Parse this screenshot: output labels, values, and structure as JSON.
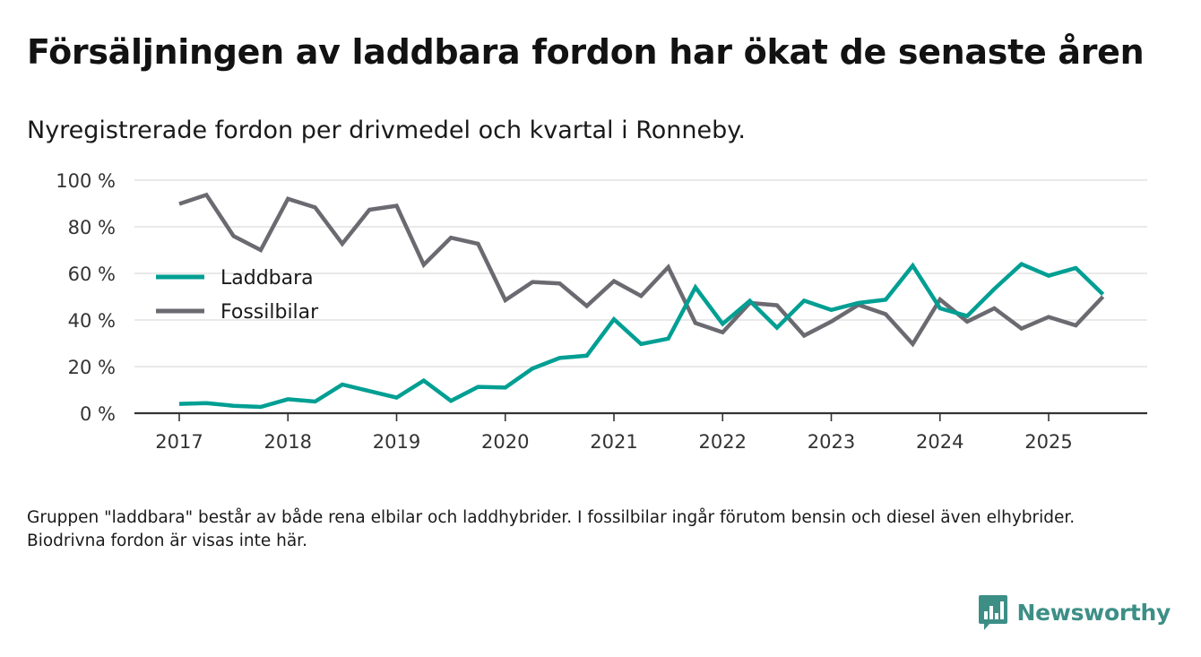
{
  "header": {
    "title": "Försäljningen av laddbara fordon har ökat de senaste åren",
    "subtitle": "Nyregistrerade fordon per drivmedel och kvartal i Ronneby."
  },
  "footer": {
    "note": "Gruppen \"laddbara\" består av både rena elbilar och laddhybrider. I fossilbilar ingår förutom bensin och diesel även elhybrider. Biodrivna fordon är visas inte här.",
    "brand": "Newsworthy"
  },
  "colors": {
    "laddbara": "#009f93",
    "fossilbilar": "#6b6a71",
    "grid": "#dcdcdc",
    "axis": "#333333",
    "brand": "#3d8f86"
  },
  "chart_data": {
    "type": "line",
    "title": "Försäljningen av laddbara fordon har ökat de senaste åren",
    "xlabel": "",
    "ylabel": "",
    "ylim": [
      0,
      100
    ],
    "xlim": [
      2017,
      2025.75
    ],
    "y_ticks": [
      0,
      20,
      40,
      60,
      80,
      100
    ],
    "y_tick_labels": [
      "0 %",
      "20 %",
      "40 %",
      "60 %",
      "80 %",
      "100 %"
    ],
    "x_ticks": [
      2017,
      2018,
      2019,
      2020,
      2021,
      2022,
      2023,
      2024,
      2025
    ],
    "x_tick_labels": [
      "2017",
      "2018",
      "2019",
      "2020",
      "2021",
      "2022",
      "2023",
      "2024",
      "2025"
    ],
    "legend_position": "left-middle",
    "x": [
      2017,
      2017.25,
      2017.5,
      2017.75,
      2018,
      2018.25,
      2018.5,
      2018.75,
      2019,
      2019.25,
      2019.5,
      2019.75,
      2020,
      2020.25,
      2020.5,
      2020.75,
      2021,
      2021.25,
      2021.5,
      2021.75,
      2022,
      2022.25,
      2022.5,
      2022.75,
      2023,
      2023.25,
      2023.5,
      2023.75,
      2024,
      2024.25,
      2024.5,
      2024.75,
      2025,
      2025.25,
      2025.5
    ],
    "series": [
      {
        "name": "Laddbara",
        "key": "laddbara",
        "values": [
          4,
          4.3,
          3.2,
          2.7,
          6,
          5,
          12.3,
          9.5,
          6.7,
          14,
          5.3,
          11.3,
          11,
          19.2,
          23.7,
          24.7,
          40.3,
          29.7,
          32,
          54,
          38.3,
          48.2,
          36.7,
          48.3,
          44.3,
          47.3,
          48.7,
          63.3,
          45,
          41.7,
          53.3,
          64,
          59,
          62.3,
          51
        ]
      },
      {
        "name": "Fossilbilar",
        "key": "fossilbilar",
        "values": [
          89.8,
          93.7,
          76,
          70,
          92,
          88.3,
          72.7,
          87.3,
          89,
          63.7,
          75.3,
          72.7,
          48.5,
          56.3,
          55.7,
          46,
          56.7,
          50.3,
          62.7,
          38.7,
          34.7,
          47.3,
          46.3,
          33.3,
          39.3,
          46.5,
          42.5,
          29.7,
          48.8,
          39.3,
          45,
          36.3,
          41.3,
          37.7,
          50
        ]
      }
    ]
  }
}
